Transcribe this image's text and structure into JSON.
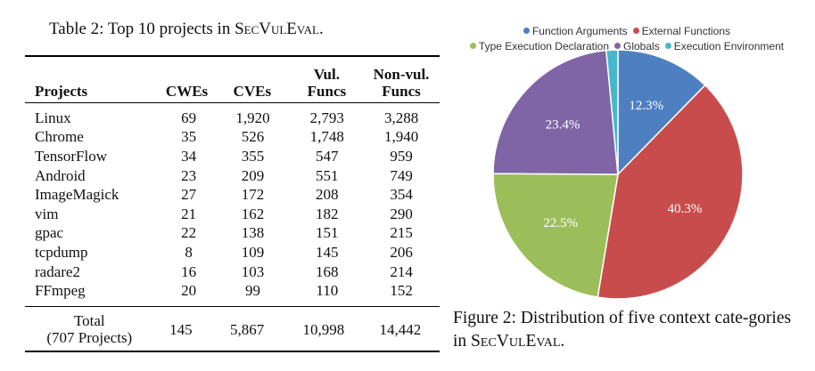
{
  "table": {
    "caption_prefix": "Table 2: Top 10 projects in ",
    "caption_name": "SecVulEval",
    "caption_suffix": ".",
    "headers": {
      "projects": "Projects",
      "cwes": "CWEs",
      "cves": "CVEs",
      "vul_line1": "Vul.",
      "vul_line2": "Funcs",
      "nonvul_line1": "Non-vul.",
      "nonvul_line2": "Funcs"
    },
    "rows": [
      {
        "project": "Linux",
        "cwes": "69",
        "cves": "1,920",
        "vul": "2,793",
        "nonvul": "3,288"
      },
      {
        "project": "Chrome",
        "cwes": "35",
        "cves": "526",
        "vul": "1,748",
        "nonvul": "1,940"
      },
      {
        "project": "TensorFlow",
        "cwes": "34",
        "cves": "355",
        "vul": "547",
        "nonvul": "959"
      },
      {
        "project": "Android",
        "cwes": "23",
        "cves": "209",
        "vul": "551",
        "nonvul": "749"
      },
      {
        "project": "ImageMagick",
        "cwes": "27",
        "cves": "172",
        "vul": "208",
        "nonvul": "354"
      },
      {
        "project": "vim",
        "cwes": "21",
        "cves": "162",
        "vul": "182",
        "nonvul": "290"
      },
      {
        "project": "gpac",
        "cwes": "22",
        "cves": "138",
        "vul": "151",
        "nonvul": "215"
      },
      {
        "project": "tcpdump",
        "cwes": "8",
        "cves": "109",
        "vul": "145",
        "nonvul": "206"
      },
      {
        "project": "radare2",
        "cwes": "16",
        "cves": "103",
        "vul": "168",
        "nonvul": "214"
      },
      {
        "project": "FFmpeg",
        "cwes": "20",
        "cves": "99",
        "vul": "110",
        "nonvul": "152"
      }
    ],
    "total": {
      "label_line1": "Total",
      "label_line2": "(707 Projects)",
      "cwes": "145",
      "cves": "5,867",
      "vul": "10,998",
      "nonvul": "14,442"
    }
  },
  "figure": {
    "caption_prefix": "Figure 2: Distribution of five context cate-gories in ",
    "caption_name": "SecVulEval",
    "caption_suffix": "."
  },
  "chart_data": {
    "type": "pie",
    "title": "",
    "legend_position": "top",
    "start_angle_deg": 0,
    "direction": "clockwise",
    "slices": [
      {
        "label": "Function Arguments",
        "value": 12.3,
        "display": "12.3%",
        "color": "#4e7fc1"
      },
      {
        "label": "External Functions",
        "value": 40.3,
        "display": "40.3%",
        "color": "#c94c4c"
      },
      {
        "label": "Type Execution Declaration",
        "value": 22.5,
        "display": "22.5%",
        "color": "#9cbe5a"
      },
      {
        "label": "Globals",
        "value": 23.4,
        "display": "23.4%",
        "color": "#8065a6"
      },
      {
        "label": "Execution Environment",
        "value": 1.5,
        "display": "",
        "color": "#46b7cc"
      }
    ]
  }
}
